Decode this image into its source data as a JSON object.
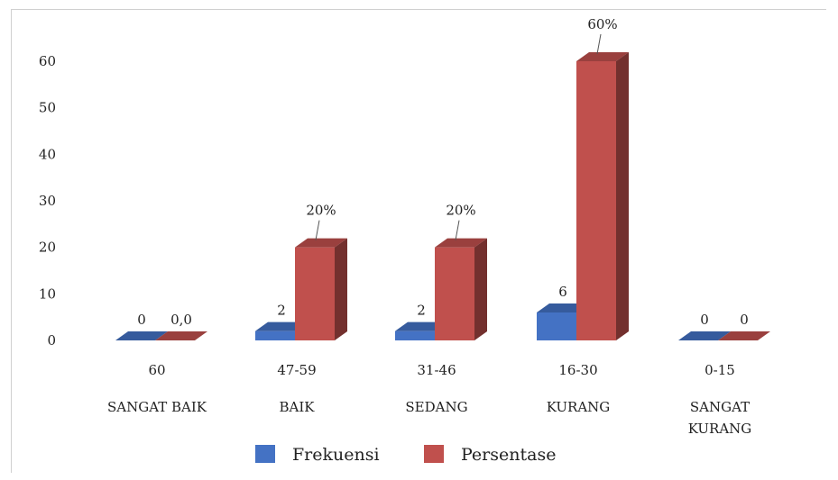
{
  "chart_data": {
    "type": "bar",
    "variant": "3d-clustered-column",
    "categories": [
      {
        "range": "60",
        "label": [
          "SANGAT BAIK"
        ]
      },
      {
        "range": "47-59",
        "label": [
          "BAIK"
        ]
      },
      {
        "range": "31-46",
        "label": [
          "SEDANG"
        ]
      },
      {
        "range": "16-30",
        "label": [
          "KURANG"
        ]
      },
      {
        "range": "0-15",
        "label": [
          "SANGAT",
          "KURANG"
        ]
      }
    ],
    "series": [
      {
        "name": "Frekuensi",
        "color": "#4472C4",
        "values": [
          0,
          2,
          2,
          6,
          0
        ],
        "labels": [
          "0",
          "2",
          "2",
          "6",
          "0"
        ]
      },
      {
        "name": "Persentase",
        "color": "#C0504D",
        "values": [
          0,
          20,
          20,
          60,
          0
        ],
        "labels": [
          "0,0",
          "20%",
          "20%",
          "60%",
          "0"
        ]
      }
    ],
    "yticks": [
      "0",
      "10",
      "20",
      "30",
      "40",
      "50",
      "60"
    ],
    "ylim": [
      0,
      60
    ],
    "grid": false,
    "legend": "bottom"
  }
}
